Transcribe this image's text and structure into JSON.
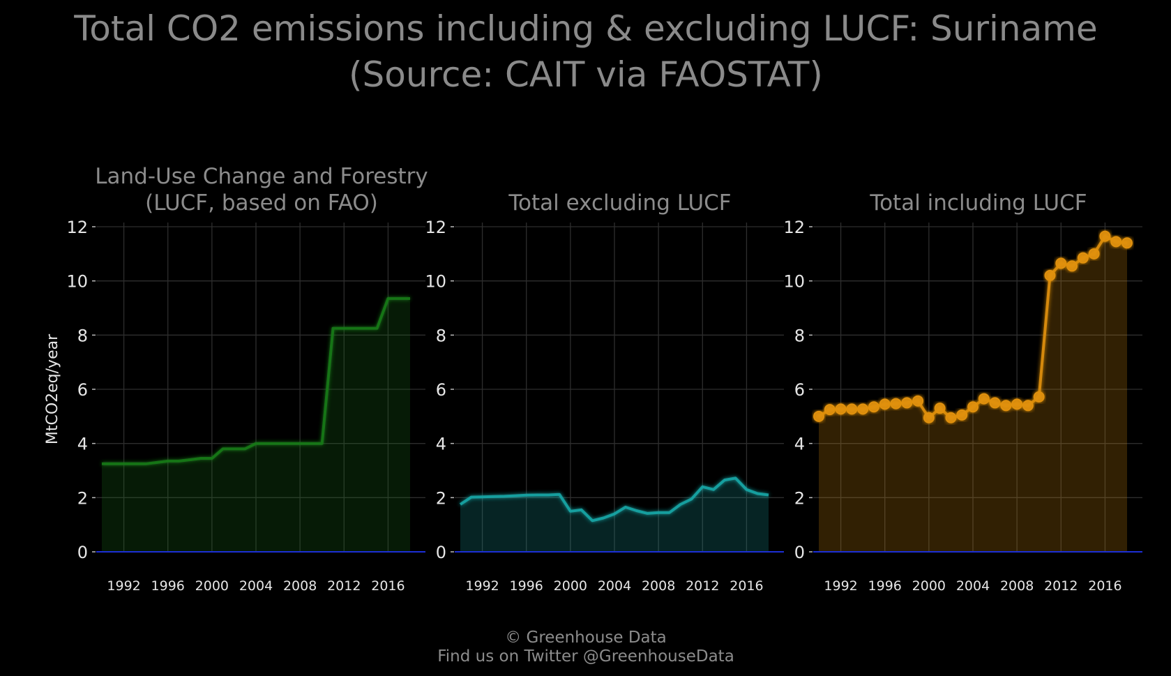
{
  "title_line1": "Total CO2 emissions including & excluding LUCF: Suriname",
  "title_line2": "(Source: CAIT via FAOSTAT)",
  "caption_line1": "© Greenhouse Data",
  "caption_line2": "Find us on Twitter @GreenhouseData",
  "chart_data": [
    {
      "type": "area",
      "title": "Land-Use Change and Forestry\n(LUCF, based on FAO)",
      "ylabel": "MtCO2eq/year",
      "xlabel": "",
      "ylim": [
        0,
        12
      ],
      "xlim": [
        1990,
        2018
      ],
      "y_ticks": [
        0,
        2,
        4,
        6,
        8,
        10,
        12
      ],
      "x_ticks": [
        1992,
        1996,
        2000,
        2004,
        2008,
        2012,
        2016
      ],
      "grid": true,
      "color": "#1a7a1a",
      "markers": false,
      "x": [
        1990,
        1991,
        1992,
        1993,
        1994,
        1995,
        1996,
        1997,
        1998,
        1999,
        2000,
        2001,
        2002,
        2003,
        2004,
        2005,
        2006,
        2007,
        2008,
        2009,
        2010,
        2011,
        2012,
        2013,
        2014,
        2015,
        2016,
        2017,
        2018
      ],
      "values": [
        3.25,
        3.25,
        3.25,
        3.25,
        3.25,
        3.3,
        3.35,
        3.35,
        3.4,
        3.45,
        3.45,
        3.8,
        3.8,
        3.8,
        4.0,
        4.0,
        4.0,
        4.0,
        4.0,
        4.0,
        4.0,
        8.25,
        8.25,
        8.25,
        8.25,
        8.25,
        9.35,
        9.35,
        9.35
      ]
    },
    {
      "type": "area",
      "title": "Total excluding LUCF",
      "ylabel": "",
      "xlabel": "",
      "ylim": [
        0,
        12
      ],
      "xlim": [
        1990,
        2018
      ],
      "y_ticks": [
        0,
        2,
        4,
        6,
        8,
        10,
        12
      ],
      "x_ticks": [
        1992,
        1996,
        2000,
        2004,
        2008,
        2012,
        2016
      ],
      "grid": true,
      "color": "#1aa6a6",
      "markers": false,
      "x": [
        1990,
        1991,
        1992,
        1993,
        1994,
        1995,
        1996,
        1997,
        1998,
        1999,
        2000,
        2001,
        2002,
        2003,
        2004,
        2005,
        2006,
        2007,
        2008,
        2009,
        2010,
        2011,
        2012,
        2013,
        2014,
        2015,
        2016,
        2017,
        2018
      ],
      "values": [
        1.75,
        2.02,
        2.03,
        2.04,
        2.05,
        2.07,
        2.09,
        2.1,
        2.1,
        2.12,
        1.5,
        1.55,
        1.15,
        1.25,
        1.4,
        1.65,
        1.52,
        1.42,
        1.45,
        1.45,
        1.75,
        1.95,
        2.4,
        2.3,
        2.65,
        2.72,
        2.3,
        2.15,
        2.1
      ]
    },
    {
      "type": "area",
      "title": "Total including LUCF",
      "ylabel": "",
      "xlabel": "",
      "ylim": [
        0,
        12
      ],
      "xlim": [
        1990,
        2018
      ],
      "y_ticks": [
        0,
        2,
        4,
        6,
        8,
        10,
        12
      ],
      "x_ticks": [
        1992,
        1996,
        2000,
        2004,
        2008,
        2012,
        2016
      ],
      "grid": true,
      "color": "#e0900f",
      "markers": true,
      "x": [
        1990,
        1991,
        1992,
        1993,
        1994,
        1995,
        1996,
        1997,
        1998,
        1999,
        2000,
        2001,
        2002,
        2003,
        2004,
        2005,
        2006,
        2007,
        2008,
        2009,
        2010,
        2011,
        2012,
        2013,
        2014,
        2015,
        2016,
        2017,
        2018
      ],
      "values": [
        5.0,
        5.25,
        5.27,
        5.27,
        5.27,
        5.35,
        5.45,
        5.47,
        5.5,
        5.57,
        4.95,
        5.3,
        4.95,
        5.05,
        5.35,
        5.65,
        5.5,
        5.4,
        5.45,
        5.4,
        5.72,
        10.2,
        10.65,
        10.55,
        10.85,
        11.0,
        11.65,
        11.45,
        11.4
      ]
    }
  ]
}
